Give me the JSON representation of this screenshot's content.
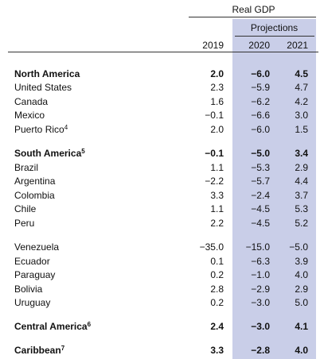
{
  "header": {
    "title": "Real GDP",
    "subtitle": "Projections",
    "years": [
      "2019",
      "2020",
      "2021"
    ]
  },
  "table": {
    "rows": [
      {
        "name": "North America",
        "note": null,
        "bold": true,
        "values": [
          "2.0",
          "−6.0",
          "4.5"
        ],
        "gap": false
      },
      {
        "name": "United States",
        "note": null,
        "bold": false,
        "values": [
          "2.3",
          "−5.9",
          "4.7"
        ],
        "gap": false
      },
      {
        "name": "Canada",
        "note": null,
        "bold": false,
        "values": [
          "1.6",
          "−6.2",
          "4.2"
        ],
        "gap": false
      },
      {
        "name": "Mexico",
        "note": null,
        "bold": false,
        "values": [
          "−0.1",
          "−6.6",
          "3.0"
        ],
        "gap": false
      },
      {
        "name": "Puerto Rico",
        "note": "4",
        "bold": false,
        "values": [
          "2.0",
          "−6.0",
          "1.5"
        ],
        "gap": false
      },
      {
        "name": "South America",
        "note": "5",
        "bold": true,
        "values": [
          "−0.1",
          "−5.0",
          "3.4"
        ],
        "gap": true
      },
      {
        "name": "Brazil",
        "note": null,
        "bold": false,
        "values": [
          "1.1",
          "−5.3",
          "2.9"
        ],
        "gap": false
      },
      {
        "name": "Argentina",
        "note": null,
        "bold": false,
        "values": [
          "−2.2",
          "−5.7",
          "4.4"
        ],
        "gap": false
      },
      {
        "name": "Colombia",
        "note": null,
        "bold": false,
        "values": [
          "3.3",
          "−2.4",
          "3.7"
        ],
        "gap": false
      },
      {
        "name": "Chile",
        "note": null,
        "bold": false,
        "values": [
          "1.1",
          "−4.5",
          "5.3"
        ],
        "gap": false
      },
      {
        "name": "Peru",
        "note": null,
        "bold": false,
        "values": [
          "2.2",
          "−4.5",
          "5.2"
        ],
        "gap": false
      },
      {
        "name": "Venezuela",
        "note": null,
        "bold": false,
        "values": [
          "−35.0",
          "−15.0",
          "−5.0"
        ],
        "gap": true
      },
      {
        "name": "Ecuador",
        "note": null,
        "bold": false,
        "values": [
          "0.1",
          "−6.3",
          "3.9"
        ],
        "gap": false
      },
      {
        "name": "Paraguay",
        "note": null,
        "bold": false,
        "values": [
          "0.2",
          "−1.0",
          "4.0"
        ],
        "gap": false
      },
      {
        "name": "Bolivia",
        "note": null,
        "bold": false,
        "values": [
          "2.8",
          "−2.9",
          "2.9"
        ],
        "gap": false
      },
      {
        "name": "Uruguay",
        "note": null,
        "bold": false,
        "values": [
          "0.2",
          "−3.0",
          "5.0"
        ],
        "gap": false
      },
      {
        "name": "Central America",
        "note": "6",
        "bold": true,
        "values": [
          "2.4",
          "−3.0",
          "4.1"
        ],
        "gap": true
      },
      {
        "name": "Caribbean",
        "note": "7",
        "bold": true,
        "values": [
          "3.3",
          "−2.8",
          "4.0"
        ],
        "gap": true
      }
    ]
  }
}
